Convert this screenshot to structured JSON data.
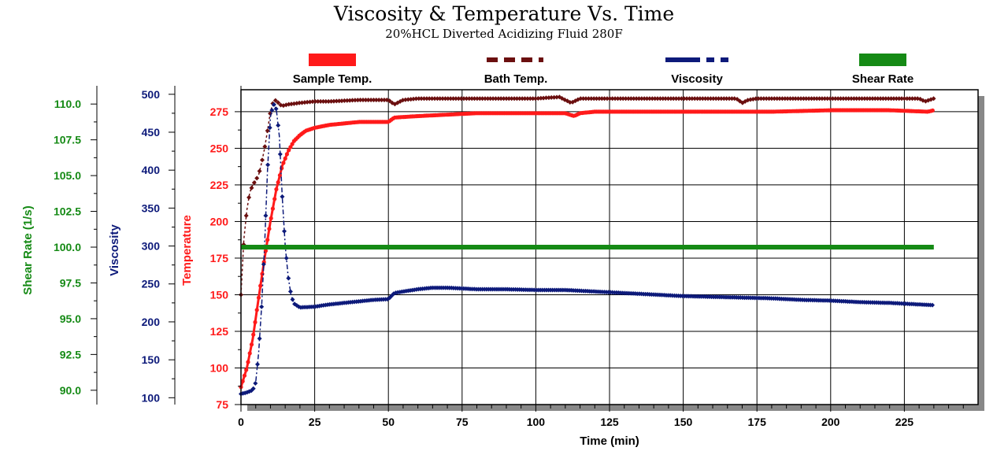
{
  "colors": {
    "sample_temp": "#ff1a1a",
    "bath_temp": "#6b0f0f",
    "viscosity": "#0d1a7a",
    "shear_rate": "#158a15"
  },
  "chart_data": {
    "type": "line",
    "title": "Viscosity & Temperature Vs. Time",
    "subtitle": "20%HCL Diverted Acidizing Fluid 280F",
    "xlabel": "Time (min)",
    "x_ticks": [
      0,
      25,
      50,
      75,
      100,
      125,
      150,
      175,
      200,
      225
    ],
    "xlim": [
      0,
      250
    ],
    "grid": true,
    "legend_position": "top",
    "axes": {
      "shear_rate": {
        "label": "Shear Rate (1/s)",
        "ylim": [
          89,
          111
        ],
        "ticks": [
          "90.0",
          "92.5",
          "95.0",
          "97.5",
          "100.0",
          "102.5",
          "105.0",
          "107.5",
          "110.0"
        ]
      },
      "viscosity": {
        "label": "Viscosity",
        "ylim": [
          91,
          506
        ],
        "ticks": [
          "100",
          "150",
          "200",
          "250",
          "300",
          "350",
          "400",
          "450",
          "500"
        ]
      },
      "temperature": {
        "label": "Temperature",
        "ylim": [
          75,
          290
        ],
        "ticks": [
          "75",
          "100",
          "125",
          "150",
          "175",
          "200",
          "225",
          "250",
          "275"
        ]
      }
    },
    "series": [
      {
        "name": "Sample Temp.",
        "axis": "temperature",
        "style": "solid",
        "x": [
          0,
          2,
          4,
          6,
          8,
          10,
          12,
          14,
          16,
          18,
          20,
          22,
          25,
          30,
          35,
          40,
          45,
          50,
          52,
          60,
          70,
          80,
          90,
          100,
          110,
          113,
          115,
          120,
          140,
          160,
          180,
          200,
          220,
          233,
          235
        ],
        "y": [
          87,
          100,
          120,
          148,
          175,
          200,
          222,
          238,
          248,
          255,
          259,
          262,
          264,
          266,
          267,
          268,
          268,
          268,
          271,
          272,
          273,
          274,
          274,
          274,
          274,
          272,
          274,
          275,
          275,
          275,
          275,
          276,
          276,
          275,
          276
        ]
      },
      {
        "name": "Bath Temp.",
        "axis": "temperature",
        "style": "dashed",
        "x": [
          0,
          1,
          2,
          3,
          4,
          5,
          6,
          7,
          8,
          9,
          10,
          11,
          12,
          13,
          14,
          16,
          20,
          25,
          30,
          40,
          50,
          52,
          55,
          60,
          80,
          100,
          108,
          110,
          112,
          115,
          130,
          150,
          168,
          170,
          172,
          175,
          200,
          230,
          232,
          235
        ],
        "y": [
          150,
          188,
          208,
          220,
          225,
          228,
          232,
          240,
          250,
          262,
          275,
          282,
          283,
          280,
          279,
          280,
          281,
          282,
          282,
          283,
          283,
          280,
          283,
          284,
          284,
          284,
          285,
          283,
          281,
          284,
          284,
          284,
          284,
          281,
          283,
          284,
          284,
          284,
          282,
          284
        ]
      },
      {
        "name": "Viscosity",
        "axis": "viscosity",
        "style": "dashdot",
        "x": [
          0,
          2,
          4,
          5,
          6,
          7,
          8,
          9,
          10,
          11,
          12,
          13,
          14,
          15,
          16,
          17,
          18,
          20,
          25,
          30,
          35,
          40,
          45,
          50,
          52,
          55,
          60,
          65,
          70,
          75,
          80,
          90,
          100,
          110,
          120,
          130,
          140,
          150,
          160,
          170,
          180,
          190,
          200,
          210,
          220,
          230,
          235
        ],
        "y": [
          105,
          107,
          110,
          120,
          160,
          220,
          300,
          400,
          470,
          488,
          480,
          445,
          365,
          300,
          260,
          235,
          224,
          219,
          220,
          223,
          225,
          227,
          229,
          230,
          238,
          240,
          243,
          245,
          245,
          244,
          243,
          243,
          242,
          242,
          240,
          238,
          236,
          234,
          233,
          232,
          231,
          229,
          228,
          226,
          225,
          223,
          222
        ]
      },
      {
        "name": "Shear Rate",
        "axis": "shear_rate",
        "style": "solid",
        "x": [
          0,
          235
        ],
        "y": [
          100.0,
          100.0
        ]
      }
    ]
  }
}
